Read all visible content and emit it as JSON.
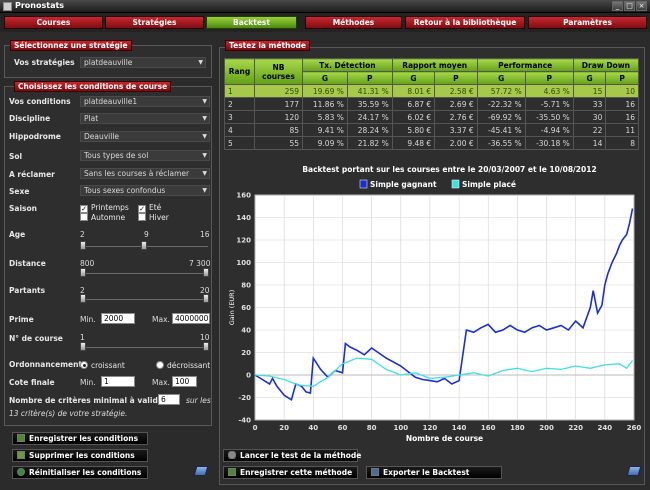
{
  "window": {
    "title": "Pronostats"
  },
  "tabs": [
    {
      "label": "Courses",
      "active": false
    },
    {
      "label": "Stratégies",
      "active": false
    },
    {
      "label": "Backtest",
      "active": true
    },
    {
      "label": "Méthodes",
      "active": false
    },
    {
      "label": "Retour à la bibliothèque",
      "active": false
    },
    {
      "label": "Paramètres",
      "active": false
    }
  ],
  "strategy": {
    "section_label": "Sélectionnez une stratégie",
    "field_label": "Vos stratégies",
    "value": "platdeauville"
  },
  "conditions": {
    "section_label": "Choisissez les conditions de course",
    "fields": [
      {
        "label": "Vos conditions",
        "value": "platdeauville1"
      },
      {
        "label": "Discipline",
        "value": "Plat"
      },
      {
        "label": "Hippodrome",
        "value": "Deauville"
      },
      {
        "label": "Sol",
        "value": "Tous types de sol"
      },
      {
        "label": "A réclamer",
        "value": "Sans les courses à réclamer"
      },
      {
        "label": "Sexe",
        "value": "Tous sexes confondus"
      }
    ],
    "saison": {
      "label": "Saison",
      "options": [
        {
          "label": "Printemps",
          "checked": true
        },
        {
          "label": "Eté",
          "checked": true
        },
        {
          "label": "Automne",
          "checked": false
        },
        {
          "label": "Hiver",
          "checked": false
        }
      ]
    },
    "age": {
      "label": "Age",
      "min": "2",
      "value": "9",
      "max": "16"
    },
    "distance": {
      "label": "Distance",
      "min": "800",
      "max": "7 300"
    },
    "partants": {
      "label": "Partants",
      "min": "2",
      "max": "20"
    },
    "prime": {
      "label": "Prime",
      "min_label": "Min.",
      "min": "2000",
      "max_label": "Max.",
      "max": "4000000"
    },
    "numero_course": {
      "label": "N° de course",
      "min": "1",
      "max": "10"
    },
    "ordonnancement": {
      "label": "Ordonnancement",
      "options": [
        {
          "label": "croissant",
          "selected": true
        },
        {
          "label": "décroissant",
          "selected": false
        }
      ]
    },
    "cote_finale": {
      "label": "Cote finale",
      "min_label": "Min.",
      "min": "1",
      "max_label": "Max.",
      "max": "100"
    },
    "criteres": {
      "label": "Nombre de critères minimal à valider :",
      "value": "6",
      "suffix": "sur les",
      "note": "13 critère(s) de votre stratégie."
    }
  },
  "left_buttons": [
    {
      "label": "Enregistrer les conditions",
      "icon": "save-icon"
    },
    {
      "label": "Supprimer les conditions",
      "icon": "delete-icon"
    },
    {
      "label": "Réinitialiser les conditions",
      "icon": "refresh-icon"
    }
  ],
  "results": {
    "section_label": "Testez la méthode",
    "headers": {
      "rang": "Rang",
      "nb": "NB courses",
      "groups": [
        "Tx. Détection",
        "Rapport moyen",
        "Performance",
        "Draw Down"
      ],
      "sub": [
        "G",
        "P",
        "G",
        "P",
        "G",
        "P",
        "G",
        "P"
      ]
    },
    "rows": [
      [
        "1",
        "259",
        "19.69 %",
        "41.31 %",
        "8.01 €",
        "2.58 €",
        "57.72 %",
        "4.63 %",
        "15",
        "10"
      ],
      [
        "2",
        "177",
        "11.86 %",
        "35.59 %",
        "6.87 €",
        "2.69 €",
        "-22.32 %",
        "-5.71 %",
        "33",
        "16"
      ],
      [
        "3",
        "120",
        "5.83 %",
        "24.17 %",
        "6.02 €",
        "2.76 €",
        "-69.92 %",
        "-35.50 %",
        "30",
        "16"
      ],
      [
        "4",
        "85",
        "9.41 %",
        "28.24 %",
        "5.80 €",
        "3.37 €",
        "-45.41 %",
        "-4.94 %",
        "22",
        "11"
      ],
      [
        "5",
        "55",
        "9.09 %",
        "21.82 %",
        "9.48 €",
        "2.00 €",
        "-36.55 %",
        "-30.18 %",
        "14",
        "8"
      ]
    ],
    "selected_row": 0
  },
  "chart_data": {
    "type": "line",
    "title": "Backtest portant sur les courses entre le 20/03/2007 et le 10/08/2012",
    "xlabel": "Nombre de course",
    "ylabel": "Gain (EUR)",
    "xlim": [
      0,
      260
    ],
    "ylim": [
      -40,
      160
    ],
    "xticks": [
      0,
      20,
      40,
      60,
      80,
      100,
      120,
      140,
      160,
      180,
      200,
      220,
      240,
      260
    ],
    "yticks": [
      -40,
      -20,
      0,
      20,
      40,
      60,
      80,
      100,
      120,
      140,
      160
    ],
    "grid": true,
    "legend": "top",
    "series": [
      {
        "name": "Simple gagnant",
        "color": "#1a2fd0",
        "x": [
          0,
          5,
          10,
          12,
          15,
          20,
          25,
          28,
          32,
          35,
          38,
          40,
          45,
          50,
          55,
          60,
          62,
          65,
          70,
          75,
          80,
          90,
          100,
          110,
          115,
          120,
          125,
          130,
          135,
          140,
          145,
          150,
          155,
          160,
          165,
          170,
          175,
          180,
          185,
          190,
          195,
          200,
          205,
          210,
          215,
          220,
          225,
          230,
          232,
          235,
          238,
          240,
          242,
          245,
          248,
          250,
          252,
          255,
          257,
          259
        ],
        "y": [
          0,
          -4,
          -8,
          -3,
          -10,
          -18,
          -22,
          -8,
          -10,
          -15,
          -16,
          15,
          5,
          -2,
          4,
          2,
          28,
          25,
          22,
          18,
          24,
          15,
          8,
          -2,
          -4,
          -5,
          -6,
          -3,
          -8,
          -5,
          40,
          38,
          42,
          45,
          38,
          40,
          44,
          40,
          38,
          42,
          44,
          40,
          42,
          44,
          40,
          48,
          42,
          60,
          75,
          55,
          62,
          80,
          90,
          100,
          108,
          115,
          120,
          125,
          135,
          148
        ]
      },
      {
        "name": "Simple placé",
        "color": "#3ee0e0",
        "x": [
          0,
          10,
          20,
          30,
          40,
          50,
          60,
          70,
          80,
          90,
          100,
          110,
          120,
          130,
          140,
          150,
          160,
          170,
          180,
          190,
          200,
          210,
          220,
          230,
          240,
          250,
          255,
          259
        ],
        "y": [
          0,
          -1,
          -4,
          -9,
          -10,
          -2,
          10,
          15,
          14,
          5,
          0,
          2,
          -3,
          -2,
          0,
          2,
          -1,
          4,
          6,
          3,
          6,
          5,
          8,
          6,
          9,
          10,
          6,
          13
        ]
      }
    ]
  },
  "bottom_buttons": [
    {
      "label": "Lancer le test de la méthode",
      "icon": "link-icon"
    },
    {
      "label": "Enregistrer cette méthode",
      "icon": "save-icon"
    },
    {
      "label": "Exporter le Backtest",
      "icon": "export-icon"
    }
  ]
}
